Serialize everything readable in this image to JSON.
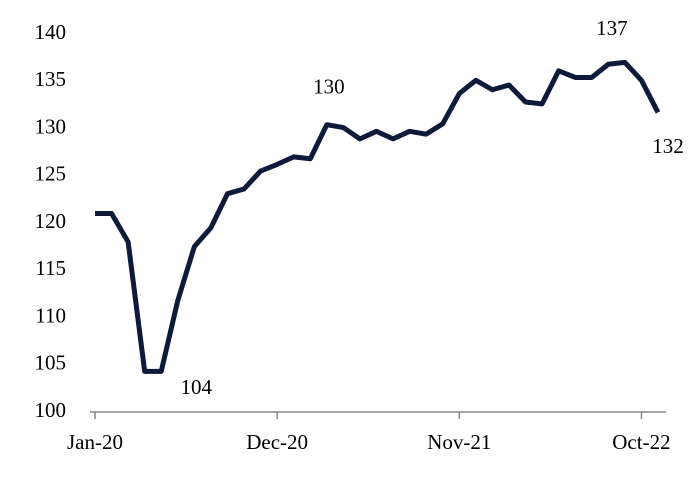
{
  "chart_data": {
    "type": "line",
    "categories": [
      "Jan-20",
      null,
      null,
      null,
      null,
      null,
      null,
      null,
      null,
      null,
      null,
      "Dec-20",
      null,
      null,
      null,
      null,
      null,
      null,
      null,
      null,
      null,
      null,
      "Nov-21",
      null,
      null,
      null,
      null,
      null,
      null,
      null,
      null,
      null,
      null,
      "Oct-22",
      null
    ],
    "series": [
      {
        "color": "#0d1a3a",
        "values": [
          121,
          121,
          118,
          104.3,
          104.3,
          111.8,
          117.5,
          119.5,
          123.1,
          123.6,
          125.5,
          126.2,
          127.0,
          126.8,
          130.4,
          130.1,
          128.9,
          129.7,
          128.9,
          129.7,
          129.4,
          130.5,
          133.7,
          135.1,
          134.1,
          134.6,
          132.8,
          132.6,
          136.1,
          135.4,
          135.4,
          136.8,
          137.0,
          135.1,
          131.7
        ],
        "value_labels": [
          null,
          null,
          null,
          null,
          "104",
          null,
          null,
          null,
          null,
          null,
          null,
          null,
          null,
          null,
          "130",
          null,
          null,
          null,
          null,
          null,
          null,
          null,
          null,
          null,
          null,
          null,
          null,
          null,
          null,
          null,
          null,
          null,
          "137",
          null,
          "132"
        ]
      }
    ],
    "ylim": [
      100,
      140
    ],
    "yticks": [
      100,
      105,
      110,
      115,
      120,
      125,
      130,
      135,
      140
    ],
    "grid": false
  }
}
